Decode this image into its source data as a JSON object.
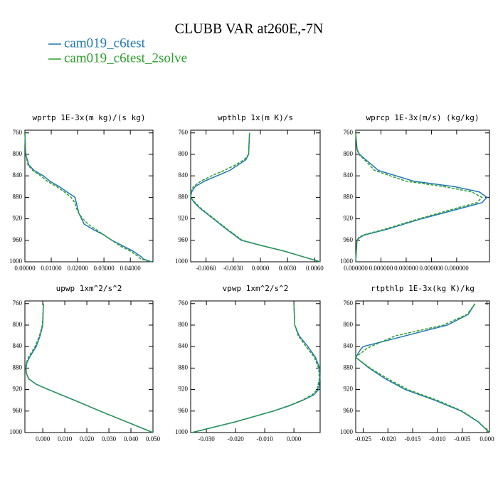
{
  "title": "CLUBB VAR at260E,-7N",
  "chart_data": [
    {
      "type": "line",
      "title": "wprtp  1E-3x(m kg)/(s kg)",
      "y": [
        760,
        800,
        820,
        830,
        840,
        850,
        860,
        870,
        880,
        890,
        900,
        910,
        920,
        930,
        940,
        950,
        960,
        970,
        980,
        990,
        995,
        1000
      ],
      "series": [
        {
          "name": "cam019_c6test",
          "color": "#1f77b4",
          "values": [
            0,
            0.0003,
            0.0015,
            0.0035,
            0.007,
            0.0095,
            0.013,
            0.016,
            0.019,
            0.0195,
            0.02,
            0.0205,
            0.0215,
            0.0225,
            0.026,
            0.03,
            0.033,
            0.037,
            0.041,
            0.044,
            0.045,
            0.048
          ]
        },
        {
          "name": "cam019_c6test_2solve",
          "color": "#2ca02c",
          "values": [
            0,
            0.0003,
            0.0012,
            0.003,
            0.006,
            0.0085,
            0.012,
            0.015,
            0.0175,
            0.019,
            0.0195,
            0.0205,
            0.022,
            0.024,
            0.027,
            0.03,
            0.033,
            0.036,
            0.04,
            0.043,
            0.044,
            0.048
          ]
        }
      ],
      "xlim": [
        0,
        0.0486
      ],
      "xticks": [
        {
          "value": 0,
          "label": "0.00000"
        },
        {
          "value": 0.01,
          "label": "0.01000"
        },
        {
          "value": 0.02,
          "label": "0.02000"
        },
        {
          "value": 0.03,
          "label": "0.03000"
        },
        {
          "value": 0.04,
          "label": "0.04000"
        }
      ],
      "ylim": [
        1000,
        755
      ],
      "yticks": [
        760,
        800,
        840,
        880,
        920,
        960,
        1000
      ]
    },
    {
      "type": "line",
      "title": "wpthlp  1x(m K)/s",
      "y": [
        760,
        800,
        810,
        820,
        830,
        840,
        850,
        860,
        870,
        880,
        890,
        900,
        920,
        940,
        960,
        970,
        980,
        990,
        1000
      ],
      "series": [
        {
          "name": "cam019_c6test",
          "color": "#1f77b4",
          "values": [
            -0.0012,
            -0.0013,
            -0.0016,
            -0.0025,
            -0.0034,
            -0.0048,
            -0.0062,
            -0.0072,
            -0.0076,
            -0.0077,
            -0.0073,
            -0.0067,
            -0.0052,
            -0.0037,
            -0.0021,
            0.0002,
            0.0026,
            0.0046,
            0.0066
          ]
        },
        {
          "name": "cam019_c6test_2solve",
          "color": "#2ca02c",
          "values": [
            -0.0012,
            -0.0013,
            -0.0018,
            -0.0028,
            -0.004,
            -0.0054,
            -0.0066,
            -0.0074,
            -0.0077,
            -0.0077,
            -0.0072,
            -0.0066,
            -0.0051,
            -0.0036,
            -0.002,
            0.0002,
            0.0026,
            0.0046,
            0.0066
          ]
        }
      ],
      "xlim": [
        -0.0077,
        0.0066
      ],
      "xticks": [
        {
          "value": -0.006,
          "label": "-0.0060"
        },
        {
          "value": -0.003,
          "label": "-0.0030"
        },
        {
          "value": 0,
          "label": "0.0000"
        },
        {
          "value": 0.003,
          "label": "0.0030"
        },
        {
          "value": 0.006,
          "label": "0.0060"
        }
      ],
      "ylim": [
        1000,
        755
      ],
      "yticks": [
        760,
        800,
        840,
        880,
        920,
        960,
        1000
      ]
    },
    {
      "type": "line",
      "title": "wprcp  1E-3x(m/s) (kg/kg)",
      "y": [
        760,
        790,
        800,
        810,
        830,
        850,
        860,
        870,
        880,
        890,
        900,
        920,
        940,
        950,
        955,
        960,
        1000
      ],
      "series": [
        {
          "name": "cam019_c6test",
          "color": "#1f77b4",
          "values": [
            0,
            5e-09,
            1.5e-08,
            4e-08,
            9e-08,
            2.3e-07,
            3.9e-07,
            4.9e-07,
            5.2e-07,
            5e-07,
            4.2e-07,
            2.6e-07,
            1.2e-07,
            3.5e-08,
            1.5e-08,
            5e-09,
            0
          ]
        },
        {
          "name": "cam019_c6test_2solve",
          "color": "#2ca02c",
          "values": [
            0,
            5e-09,
            1.2e-08,
            3.5e-08,
            7.5e-08,
            2e-07,
            3.5e-07,
            4.6e-07,
            5e-07,
            4.8e-07,
            4e-07,
            2.5e-07,
            1.1e-07,
            3e-08,
            1.2e-08,
            5e-09,
            0
          ]
        }
      ],
      "xlim": [
        0,
        5.3e-07
      ],
      "xticks": [
        {
          "value": 0,
          "label": "0.000000"
        },
        {
          "value": 1e-07,
          "label": "0.000000"
        },
        {
          "value": 2e-07,
          "label": "0.000000"
        },
        {
          "value": 3e-07,
          "label": "0.000000"
        },
        {
          "value": 4e-07,
          "label": "0.000000"
        }
      ],
      "ylim": [
        1000,
        755
      ],
      "yticks": [
        760,
        800,
        840,
        880,
        920,
        960,
        1000
      ]
    },
    {
      "type": "line",
      "title": "upwp  1xm^2/s^2",
      "y": [
        760,
        800,
        820,
        840,
        850,
        860,
        870,
        880,
        890,
        900,
        910,
        920,
        940,
        960,
        980,
        1000
      ],
      "series": [
        {
          "name": "cam019_c6test",
          "color": "#1f77b4",
          "values": [
            0.0003,
            0,
            -0.0012,
            -0.003,
            -0.0045,
            -0.006,
            -0.0072,
            -0.0076,
            -0.0074,
            -0.0064,
            -0.003,
            0.0026,
            0.0145,
            0.026,
            0.038,
            0.05
          ]
        },
        {
          "name": "cam019_c6test_2solve",
          "color": "#2ca02c",
          "values": [
            0.0003,
            -0.0002,
            -0.0015,
            -0.0035,
            -0.005,
            -0.0065,
            -0.0074,
            -0.0077,
            -0.0074,
            -0.0063,
            -0.003,
            0.0025,
            0.0143,
            0.026,
            0.038,
            0.05
          ]
        }
      ],
      "xlim": [
        -0.0081,
        0.05
      ],
      "xticks": [
        {
          "value": 0,
          "label": "0.000"
        },
        {
          "value": 0.01,
          "label": "0.010"
        },
        {
          "value": 0.02,
          "label": "0.020"
        },
        {
          "value": 0.03,
          "label": "0.030"
        },
        {
          "value": 0.04,
          "label": "0.040"
        },
        {
          "value": 0.05,
          "label": "0.050"
        }
      ],
      "ylim": [
        1000,
        755
      ],
      "yticks": [
        760,
        800,
        840,
        880,
        920,
        960,
        1000
      ]
    },
    {
      "type": "line",
      "title": "vpwp  1xm^2/s^2",
      "y": [
        760,
        800,
        820,
        840,
        860,
        880,
        900,
        920,
        930,
        940,
        950,
        960,
        980,
        1000
      ],
      "series": [
        {
          "name": "cam019_c6test",
          "color": "#1f77b4",
          "values": [
            0,
            0.0003,
            0.0018,
            0.0048,
            0.0074,
            0.0088,
            0.0089,
            0.0085,
            0.0068,
            0.003,
            -0.0015,
            -0.007,
            -0.02,
            -0.035
          ]
        },
        {
          "name": "cam019_c6test_2solve",
          "color": "#2ca02c",
          "values": [
            0,
            0.0003,
            0.0015,
            0.0042,
            0.007,
            0.0085,
            0.0087,
            0.008,
            0.0062,
            0.0027,
            -0.0017,
            -0.0072,
            -0.02,
            -0.035
          ]
        }
      ],
      "xlim": [
        -0.0354,
        0.009
      ],
      "xticks": [
        {
          "value": -0.03,
          "label": "-0.030"
        },
        {
          "value": -0.02,
          "label": "-0.020"
        },
        {
          "value": -0.01,
          "label": "-0.010"
        },
        {
          "value": 0,
          "label": "0.000"
        }
      ],
      "ylim": [
        1000,
        755
      ],
      "yticks": [
        760,
        800,
        840,
        880,
        920,
        960,
        1000
      ]
    },
    {
      "type": "line",
      "title": "rtpthlp  1E-3x(kg K)/kg",
      "y": [
        760,
        780,
        800,
        820,
        840,
        845,
        860,
        880,
        900,
        920,
        940,
        960,
        980,
        1000
      ],
      "series": [
        {
          "name": "cam019_c6test",
          "color": "#1f77b4",
          "values": [
            -0.0024,
            -0.0038,
            -0.008,
            -0.0165,
            -0.025,
            -0.0255,
            -0.0265,
            -0.0238,
            -0.0205,
            -0.0165,
            -0.0105,
            -0.0052,
            -0.0018,
            0.0005
          ]
        },
        {
          "name": "cam019_c6test_2solve",
          "color": "#2ca02c",
          "values": [
            -0.0024,
            -0.004,
            -0.0088,
            -0.0185,
            -0.0235,
            -0.0245,
            -0.0265,
            -0.0236,
            -0.02,
            -0.016,
            -0.01,
            -0.005,
            -0.0017,
            0.0005
          ]
        }
      ],
      "xlim": [
        -0.0265,
        0.0005
      ],
      "xticks": [
        {
          "value": -0.025,
          "label": "-0.025"
        },
        {
          "value": -0.02,
          "label": "-0.020"
        },
        {
          "value": -0.015,
          "label": "-0.015"
        },
        {
          "value": -0.01,
          "label": "-0.010"
        },
        {
          "value": -0.005,
          "label": "-0.005"
        },
        {
          "value": 0,
          "label": "0.000"
        }
      ],
      "ylim": [
        1000,
        755
      ],
      "yticks": [
        760,
        800,
        840,
        880,
        920,
        960,
        1000
      ]
    }
  ]
}
